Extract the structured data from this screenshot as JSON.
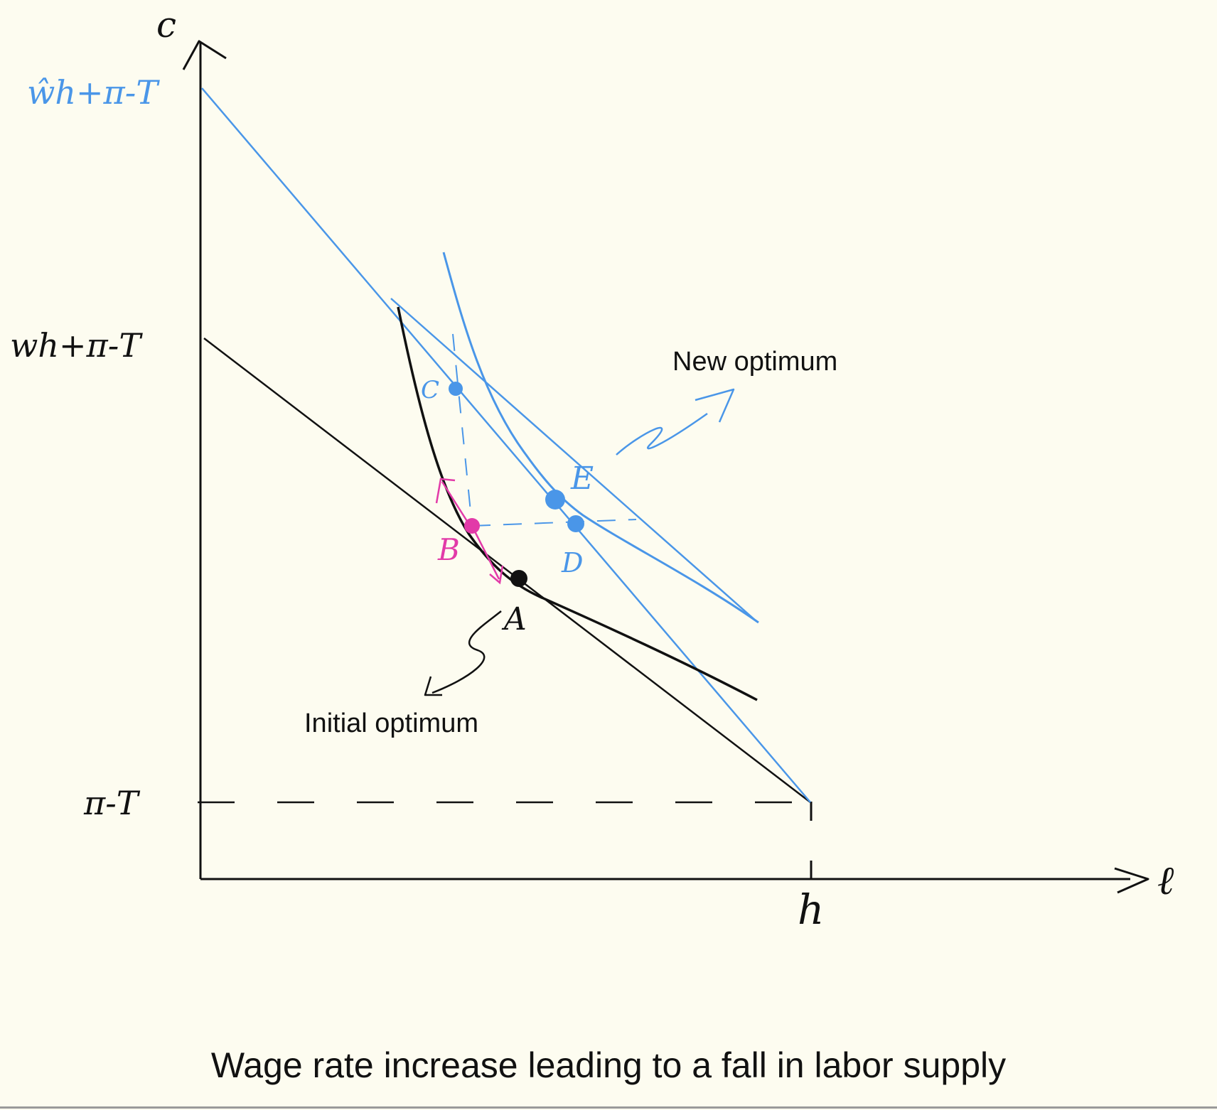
{
  "axes": {
    "y_label": "c",
    "x_label": "ℓ",
    "h_label": "h"
  },
  "intercepts": {
    "new_budget": "ŵh+π-T",
    "old_budget": "wh+π-T",
    "nonlabor": "π-T"
  },
  "points": {
    "A": "A",
    "B": "B",
    "C": "C",
    "D": "D",
    "E": "E"
  },
  "annotations": {
    "new_optimum": "New optimum",
    "initial_optimum": "Initial optimum"
  },
  "caption": "Wage rate increase leading to a fall in labor supply",
  "colors": {
    "background": "#FDFCF0",
    "ink": "#111111",
    "new": "#4A96E8",
    "substitution": "#E23AA8"
  }
}
